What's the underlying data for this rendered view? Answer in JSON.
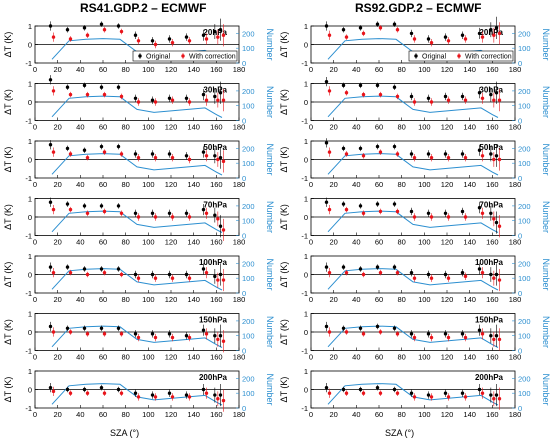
{
  "chart_data": {
    "type": "scatter",
    "columns": [
      {
        "title": "RS41.GDP.2 – ECMWF",
        "panels": [
          {
            "level": "20hPa",
            "original": [
              1.0,
              0.8,
              0.9,
              1.1,
              1.0,
              0.5,
              0.2,
              0.3,
              0.4,
              0.5,
              0.7,
              0.8
            ],
            "correction": [
              0.4,
              0.3,
              0.5,
              0.8,
              0.7,
              0.2,
              0.0,
              0.1,
              0.2,
              0.3,
              0.4,
              0.5
            ],
            "number": [
              25,
              150,
              160,
              165,
              160,
              75,
              55,
              65,
              75,
              85,
              40,
              20
            ]
          },
          {
            "level": "30hPa",
            "original": [
              1.2,
              0.8,
              0.9,
              0.8,
              0.8,
              0.2,
              0.1,
              0.2,
              0.2,
              0.4,
              0.3,
              0.5
            ],
            "correction": [
              0.6,
              0.4,
              0.4,
              0.4,
              0.3,
              0.0,
              0.0,
              0.1,
              0.0,
              0.1,
              0.1,
              0.1
            ],
            "number": [
              25,
              150,
              160,
              165,
              160,
              75,
              55,
              65,
              75,
              85,
              40,
              20
            ]
          },
          {
            "level": "50hPa",
            "original": [
              0.8,
              0.6,
              0.5,
              0.7,
              0.7,
              0.3,
              0.3,
              0.3,
              0.2,
              0.4,
              0.2,
              0.1
            ],
            "correction": [
              0.4,
              0.3,
              0.1,
              0.4,
              0.3,
              0.1,
              0.1,
              0.1,
              0.0,
              0.2,
              0.0,
              -0.1
            ],
            "number": [
              25,
              150,
              160,
              165,
              160,
              75,
              55,
              65,
              75,
              85,
              40,
              20
            ]
          },
          {
            "level": "70hPa",
            "original": [
              0.8,
              0.7,
              0.6,
              0.6,
              0.6,
              0.2,
              0.2,
              0.2,
              0.2,
              0.4,
              0.1,
              -0.5
            ],
            "correction": [
              0.4,
              0.4,
              0.2,
              0.3,
              0.2,
              0.0,
              0.0,
              0.0,
              0.0,
              0.2,
              -0.1,
              -0.7
            ],
            "number": [
              25,
              150,
              160,
              165,
              160,
              75,
              55,
              65,
              75,
              85,
              40,
              20
            ]
          },
          {
            "level": "100hPa",
            "original": [
              0.4,
              0.4,
              0.3,
              0.3,
              0.3,
              0.0,
              0.0,
              0.0,
              0.0,
              0.3,
              -0.1,
              0.0
            ],
            "correction": [
              0.1,
              0.1,
              0.0,
              0.1,
              0.0,
              -0.2,
              -0.2,
              -0.2,
              -0.2,
              0.1,
              -0.3,
              -0.3
            ],
            "number": [
              25,
              150,
              160,
              165,
              160,
              75,
              55,
              65,
              75,
              85,
              40,
              20
            ]
          },
          {
            "level": "150hPa",
            "original": [
              0.3,
              0.2,
              0.2,
              0.2,
              0.2,
              -0.1,
              -0.1,
              -0.1,
              -0.2,
              0.1,
              -0.2,
              -0.2
            ],
            "correction": [
              0.0,
              0.0,
              -0.1,
              -0.1,
              -0.1,
              -0.3,
              -0.3,
              -0.3,
              -0.3,
              -0.1,
              -0.4,
              -0.5
            ],
            "number": [
              25,
              150,
              160,
              165,
              160,
              75,
              55,
              65,
              75,
              85,
              40,
              20
            ]
          },
          {
            "level": "200hPa",
            "original": [
              0.1,
              0.0,
              0.0,
              0.1,
              0.0,
              -0.2,
              -0.3,
              -0.2,
              -0.3,
              0.0,
              -0.3,
              -0.3
            ],
            "correction": [
              -0.1,
              -0.2,
              -0.2,
              -0.2,
              -0.2,
              -0.4,
              -0.4,
              -0.4,
              -0.4,
              -0.2,
              -0.5,
              -0.6
            ],
            "number": [
              25,
              150,
              160,
              165,
              160,
              75,
              55,
              65,
              75,
              85,
              40,
              20
            ]
          }
        ]
      },
      {
        "title": "RS92.GDP.2 – ECMWF",
        "panels": [
          {
            "level": "20hPa",
            "original": [
              1.0,
              0.8,
              0.9,
              1.1,
              1.1,
              0.6,
              0.3,
              0.4,
              0.5,
              0.6,
              0.8,
              0.9
            ],
            "correction": [
              0.5,
              0.4,
              0.6,
              0.9,
              0.8,
              0.3,
              0.1,
              0.2,
              0.3,
              0.4,
              0.5,
              0.6
            ],
            "number": [
              25,
              150,
              160,
              165,
              160,
              75,
              55,
              65,
              75,
              85,
              40,
              20
            ]
          },
          {
            "level": "30hPa",
            "original": [
              1.1,
              0.9,
              0.9,
              0.9,
              0.8,
              0.3,
              0.2,
              0.3,
              0.3,
              0.5,
              0.4,
              0.5
            ],
            "correction": [
              0.6,
              0.5,
              0.4,
              0.4,
              0.3,
              0.0,
              0.0,
              0.1,
              0.1,
              0.2,
              0.1,
              0.1
            ],
            "number": [
              25,
              150,
              160,
              165,
              160,
              75,
              55,
              65,
              75,
              85,
              40,
              20
            ]
          },
          {
            "level": "50hPa",
            "original": [
              0.9,
              0.6,
              0.6,
              0.7,
              0.7,
              0.3,
              0.3,
              0.3,
              0.3,
              0.5,
              0.3,
              0.2
            ],
            "correction": [
              0.4,
              0.3,
              0.2,
              0.4,
              0.3,
              0.1,
              0.1,
              0.1,
              0.1,
              0.2,
              0.0,
              0.0
            ],
            "number": [
              25,
              150,
              160,
              165,
              160,
              75,
              55,
              65,
              75,
              85,
              40,
              20
            ]
          },
          {
            "level": "70hPa",
            "original": [
              0.8,
              0.7,
              0.6,
              0.7,
              0.7,
              0.3,
              0.2,
              0.2,
              0.3,
              0.5,
              0.2,
              -0.3
            ],
            "correction": [
              0.4,
              0.4,
              0.2,
              0.3,
              0.3,
              0.0,
              0.0,
              0.0,
              0.0,
              0.2,
              -0.1,
              -0.5
            ],
            "number": [
              25,
              150,
              160,
              165,
              160,
              75,
              55,
              65,
              75,
              85,
              40,
              20
            ]
          },
          {
            "level": "100hPa",
            "original": [
              0.4,
              0.4,
              0.3,
              0.4,
              0.4,
              0.1,
              0.0,
              0.0,
              0.1,
              0.3,
              0.0,
              0.0
            ],
            "correction": [
              0.1,
              0.1,
              0.0,
              0.1,
              0.1,
              -0.2,
              -0.2,
              -0.2,
              -0.1,
              0.1,
              -0.2,
              -0.3
            ],
            "number": [
              25,
              150,
              160,
              165,
              160,
              75,
              55,
              65,
              75,
              85,
              40,
              20
            ]
          },
          {
            "level": "150hPa",
            "original": [
              0.3,
              0.2,
              0.2,
              0.3,
              0.2,
              -0.1,
              -0.1,
              -0.1,
              -0.1,
              0.1,
              -0.2,
              -0.2
            ],
            "correction": [
              0.0,
              0.0,
              -0.1,
              0.0,
              -0.1,
              -0.3,
              -0.3,
              -0.3,
              -0.3,
              -0.1,
              -0.4,
              -0.4
            ],
            "number": [
              25,
              150,
              160,
              165,
              160,
              75,
              55,
              65,
              75,
              85,
              40,
              20
            ]
          },
          {
            "level": "200hPa",
            "original": [
              0.1,
              0.0,
              0.0,
              0.1,
              0.0,
              -0.2,
              -0.3,
              -0.2,
              -0.2,
              0.0,
              -0.3,
              -0.3
            ],
            "correction": [
              -0.2,
              -0.2,
              -0.2,
              -0.2,
              -0.2,
              -0.4,
              -0.4,
              -0.4,
              -0.4,
              -0.2,
              -0.5,
              -0.5
            ],
            "number": [
              25,
              150,
              160,
              165,
              160,
              75,
              55,
              65,
              75,
              85,
              40,
              20
            ]
          }
        ]
      }
    ],
    "sza": [
      15,
      30,
      45,
      60,
      75,
      90,
      105,
      120,
      135,
      150,
      160,
      165
    ],
    "error_half_width": [
      0.25,
      0.15,
      0.15,
      0.15,
      0.15,
      0.2,
      0.2,
      0.2,
      0.2,
      0.3,
      0.4,
      0.6
    ],
    "xlabel": "SZA (°)",
    "ylabel_left": "ΔT (K)",
    "ylabel_right": "Number",
    "xlim": [
      0,
      180
    ],
    "xticks": [
      0,
      20,
      40,
      60,
      80,
      100,
      120,
      140,
      160,
      180
    ],
    "ylim_left": [
      -1,
      1
    ],
    "yticks_left": [
      -1,
      0,
      1
    ],
    "ylim_right": [
      0,
      250
    ],
    "yticks_right": [
      0,
      100,
      200
    ],
    "legend": {
      "original": "Original",
      "correction": "With correction",
      "placement": "bottom-right of first panel"
    },
    "colors": {
      "original": "#000000",
      "correction": "#e8141b",
      "number": "#2c8fd0",
      "zero_line": "#000000"
    }
  }
}
